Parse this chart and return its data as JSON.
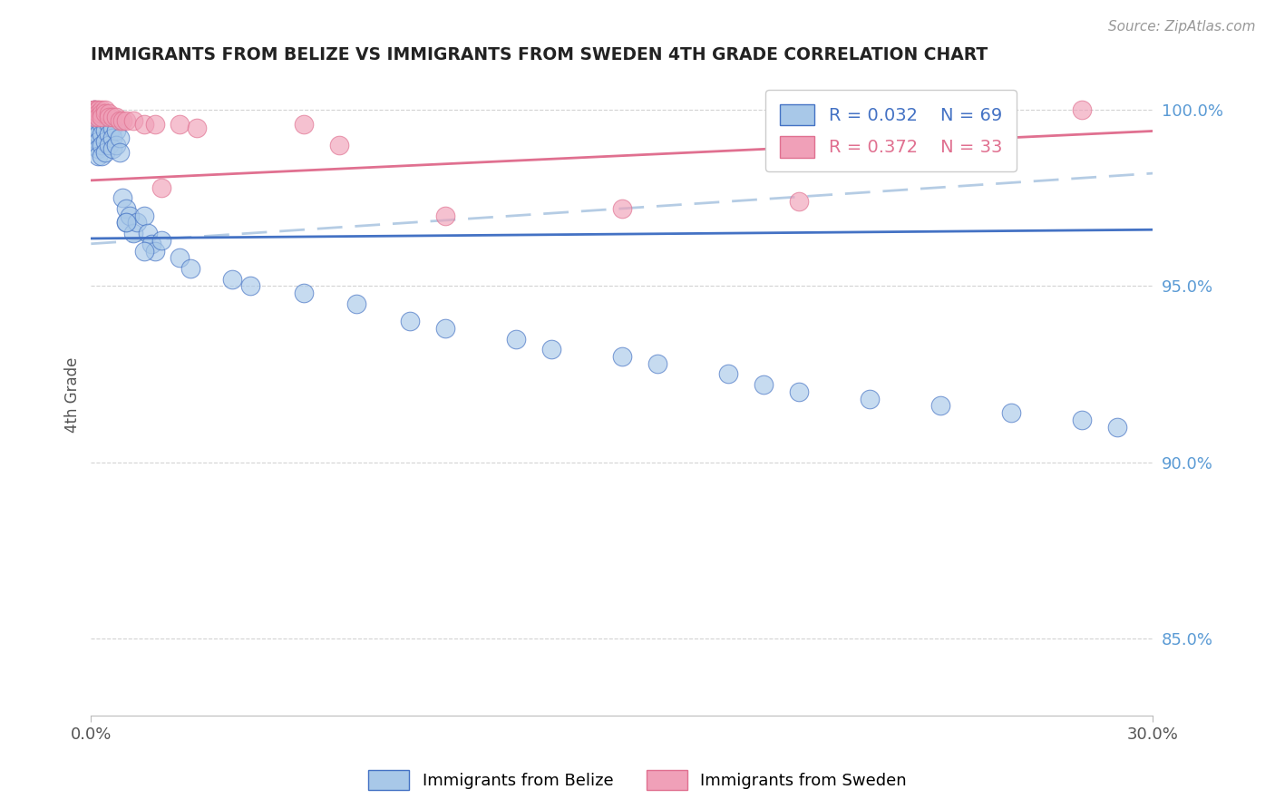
{
  "title": "IMMIGRANTS FROM BELIZE VS IMMIGRANTS FROM SWEDEN 4TH GRADE CORRELATION CHART",
  "source": "Source: ZipAtlas.com",
  "ylabel": "4th Grade",
  "xlim": [
    0.0,
    0.3
  ],
  "ylim": [
    0.828,
    1.01
  ],
  "belize_color": "#A8C8E8",
  "sweden_color": "#F0A0B8",
  "blue_trend_color": "#4472C4",
  "pink_trend_color": "#E07090",
  "blue_dashed_color": "#A8C4E0",
  "grid_color": "#C8C8C8",
  "title_color": "#222222",
  "source_color": "#999999",
  "axis_label_color": "#555555",
  "right_tick_color": "#5B9BD5",
  "legend_R_blue": "R = 0.032",
  "legend_N_blue": "N = 69",
  "legend_R_pink": "R = 0.372",
  "legend_N_pink": "N = 33",
  "legend_label_blue": "Immigrants from Belize",
  "legend_label_pink": "Immigrants from Sweden",
  "belize_trend": [
    0.9635,
    0.966
  ],
  "sweden_trend": [
    0.98,
    0.994
  ],
  "dashed_trend": [
    0.962,
    0.982
  ],
  "belize_x": [
    0.001,
    0.001,
    0.001,
    0.001,
    0.001,
    0.001,
    0.001,
    0.001,
    0.001,
    0.001,
    0.002,
    0.002,
    0.002,
    0.002,
    0.002,
    0.002,
    0.002,
    0.003,
    0.003,
    0.003,
    0.003,
    0.003,
    0.004,
    0.004,
    0.004,
    0.004,
    0.005,
    0.005,
    0.005,
    0.006,
    0.006,
    0.006,
    0.007,
    0.007,
    0.008,
    0.008,
    0.009,
    0.01,
    0.01,
    0.011,
    0.012,
    0.013,
    0.015,
    0.016,
    0.017,
    0.018,
    0.02,
    0.025,
    0.028,
    0.04,
    0.045,
    0.06,
    0.075,
    0.09,
    0.1,
    0.12,
    0.13,
    0.15,
    0.16,
    0.18,
    0.19,
    0.2,
    0.22,
    0.24,
    0.26,
    0.28,
    0.29,
    0.01,
    0.015
  ],
  "belize_y": [
    1.0,
    0.999,
    0.998,
    0.997,
    0.996,
    0.995,
    0.994,
    0.993,
    0.992,
    0.99,
    0.999,
    0.997,
    0.995,
    0.993,
    0.991,
    0.989,
    0.987,
    0.998,
    0.996,
    0.993,
    0.99,
    0.987,
    0.997,
    0.994,
    0.991,
    0.988,
    0.996,
    0.993,
    0.99,
    0.995,
    0.992,
    0.989,
    0.994,
    0.99,
    0.992,
    0.988,
    0.975,
    0.972,
    0.968,
    0.97,
    0.965,
    0.968,
    0.97,
    0.965,
    0.962,
    0.96,
    0.963,
    0.958,
    0.955,
    0.952,
    0.95,
    0.948,
    0.945,
    0.94,
    0.938,
    0.935,
    0.932,
    0.93,
    0.928,
    0.925,
    0.922,
    0.92,
    0.918,
    0.916,
    0.914,
    0.912,
    0.91,
    0.968,
    0.96
  ],
  "sweden_x": [
    0.001,
    0.001,
    0.001,
    0.001,
    0.001,
    0.002,
    0.002,
    0.002,
    0.002,
    0.003,
    0.003,
    0.003,
    0.004,
    0.004,
    0.005,
    0.005,
    0.006,
    0.007,
    0.008,
    0.009,
    0.01,
    0.012,
    0.015,
    0.018,
    0.02,
    0.025,
    0.03,
    0.06,
    0.07,
    0.1,
    0.15,
    0.2,
    0.28
  ],
  "sweden_y": [
    1.0,
    1.0,
    1.0,
    0.999,
    0.998,
    1.0,
    1.0,
    0.999,
    0.998,
    1.0,
    0.999,
    0.998,
    1.0,
    0.999,
    0.999,
    0.998,
    0.998,
    0.998,
    0.997,
    0.997,
    0.997,
    0.997,
    0.996,
    0.996,
    0.978,
    0.996,
    0.995,
    0.996,
    0.99,
    0.97,
    0.972,
    0.974,
    1.0
  ]
}
